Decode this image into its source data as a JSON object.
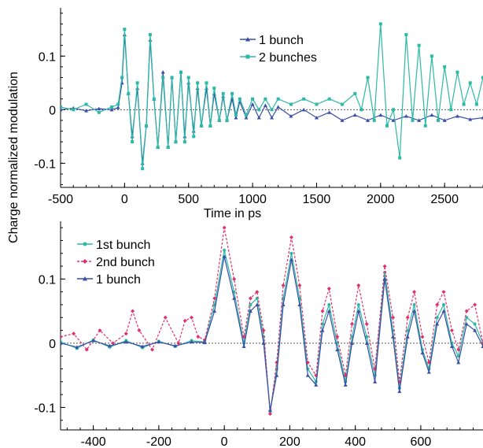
{
  "figure": {
    "shared_ylabel": "Charge normalized modulation"
  },
  "colors": {
    "one_bunch": "#3a4fa6",
    "two_bunches": "#2cb9a5",
    "first_bunch": "#2cb9a5",
    "second_bunch": "#e0306a",
    "zero_line": "#555555"
  },
  "chart_data": [
    {
      "type": "line",
      "xlabel": "Time in ps",
      "ylabel": "Charge normalized modulation",
      "xlim": [
        -500,
        2800
      ],
      "ylim": [
        -0.145,
        0.19
      ],
      "xticks": [
        -500,
        0,
        500,
        1000,
        1500,
        2000,
        2500
      ],
      "xtick_labels": [
        "-500",
        "0",
        "500",
        "1000",
        "1500",
        "2000",
        "2500"
      ],
      "yticks": [
        -0.1,
        0,
        0.1
      ],
      "ytick_labels": [
        "-0.1",
        "0",
        "0.1"
      ],
      "zero_line": true,
      "legend_position": "top-center",
      "series": [
        {
          "name": "1 bunch",
          "color": "#3a4fa6",
          "marker": "triangle",
          "x": [
            -500,
            -400,
            -300,
            -200,
            -100,
            -50,
            -20,
            0,
            30,
            60,
            100,
            140,
            170,
            200,
            230,
            260,
            300,
            340,
            370,
            400,
            440,
            470,
            500,
            540,
            570,
            600,
            640,
            670,
            700,
            740,
            770,
            800,
            840,
            870,
            900,
            950,
            1000,
            1050,
            1100,
            1150,
            1200,
            1300,
            1400,
            1500,
            1600,
            1700,
            1800,
            1900,
            2000,
            2100,
            2200,
            2300,
            2400,
            2500,
            2600,
            2700,
            2800
          ],
          "y": [
            0.0,
            0.003,
            -0.002,
            0.002,
            0.0,
            0.004,
            0.05,
            0.14,
            0.03,
            -0.05,
            0.04,
            -0.1,
            -0.03,
            0.13,
            0.02,
            -0.07,
            0.07,
            -0.07,
            0.06,
            -0.06,
            0.07,
            -0.05,
            0.05,
            -0.04,
            0.04,
            -0.03,
            0.04,
            -0.03,
            0.03,
            -0.02,
            0.025,
            -0.02,
            0.02,
            -0.015,
            0.015,
            -0.015,
            0.01,
            -0.015,
            0.008,
            -0.015,
            0.005,
            -0.012,
            0.0,
            -0.015,
            -0.005,
            -0.02,
            -0.01,
            -0.02,
            -0.01,
            -0.02,
            -0.012,
            -0.02,
            -0.01,
            -0.02,
            -0.012,
            -0.018,
            -0.015
          ]
        },
        {
          "name": "2 bunches",
          "color": "#2cb9a5",
          "marker": "square",
          "x": [
            -500,
            -400,
            -300,
            -200,
            -100,
            -50,
            -20,
            0,
            30,
            60,
            100,
            140,
            170,
            200,
            230,
            260,
            300,
            340,
            370,
            400,
            440,
            470,
            500,
            540,
            570,
            600,
            640,
            670,
            700,
            740,
            770,
            800,
            840,
            870,
            900,
            950,
            1000,
            1050,
            1100,
            1150,
            1200,
            1300,
            1400,
            1500,
            1600,
            1700,
            1800,
            1850,
            1900,
            1950,
            2000,
            2050,
            2100,
            2150,
            2200,
            2250,
            2300,
            2350,
            2400,
            2450,
            2500,
            2550,
            2600,
            2650,
            2700,
            2750,
            2800
          ],
          "y": [
            0.005,
            0.0,
            0.01,
            -0.005,
            0.005,
            0.01,
            0.06,
            0.15,
            0.03,
            -0.06,
            0.05,
            -0.11,
            -0.03,
            0.14,
            0.02,
            -0.07,
            0.06,
            -0.07,
            0.06,
            -0.06,
            0.07,
            -0.06,
            0.06,
            -0.05,
            0.05,
            -0.03,
            0.05,
            -0.03,
            0.04,
            -0.02,
            0.03,
            -0.02,
            0.03,
            -0.01,
            0.02,
            -0.01,
            0.02,
            0.0,
            0.02,
            0.0,
            0.02,
            0.01,
            0.02,
            0.01,
            0.02,
            0.01,
            0.03,
            0.0,
            0.06,
            -0.02,
            0.16,
            -0.03,
            0.0,
            -0.09,
            0.14,
            -0.02,
            0.12,
            -0.03,
            0.1,
            -0.02,
            0.08,
            0.0,
            0.07,
            0.01,
            0.05,
            0.01,
            0.06
          ]
        }
      ]
    },
    {
      "type": "line",
      "xlabel": "Time in ps",
      "ylabel": "Charge normalized modulation",
      "xlim": [
        -500,
        790
      ],
      "ylim": [
        -0.135,
        0.19
      ],
      "xticks": [
        -400,
        -200,
        0,
        200,
        400,
        600
      ],
      "xtick_labels": [
        "-400",
        "-200",
        "0",
        "200",
        "400",
        "600"
      ],
      "yticks": [
        -0.1,
        0,
        0.1
      ],
      "ytick_labels": [
        "-0.1",
        "0",
        "0.1"
      ],
      "zero_line": true,
      "legend_position": "top-left",
      "series": [
        {
          "name": "1st bunch",
          "color": "#2cb9a5",
          "marker": "circle",
          "x": [
            -500,
            -450,
            -400,
            -350,
            -300,
            -250,
            -200,
            -150,
            -100,
            -60,
            -30,
            0,
            30,
            60,
            80,
            100,
            120,
            140,
            160,
            180,
            205,
            230,
            255,
            280,
            300,
            320,
            345,
            370,
            390,
            410,
            435,
            460,
            490,
            515,
            535,
            560,
            580,
            605,
            625,
            650,
            670,
            695,
            715,
            740,
            765,
            790
          ],
          "y": [
            0.002,
            -0.008,
            0.005,
            -0.006,
            0.004,
            -0.007,
            0.003,
            -0.005,
            0.004,
            0.002,
            0.06,
            0.145,
            0.08,
            0.0,
            0.06,
            0.07,
            0.01,
            -0.105,
            -0.04,
            0.07,
            0.14,
            0.07,
            -0.04,
            -0.06,
            0.03,
            0.06,
            0.0,
            -0.06,
            0.01,
            0.06,
            0.01,
            -0.05,
            0.11,
            0.02,
            -0.07,
            0.02,
            0.06,
            -0.01,
            -0.04,
            0.04,
            0.06,
            0.0,
            -0.02,
            0.04,
            0.03,
            0.0
          ]
        },
        {
          "name": "2nd bunch",
          "color": "#e0306a",
          "marker": "diamond",
          "x": [
            -500,
            -460,
            -420,
            -380,
            -340,
            -300,
            -280,
            -260,
            -220,
            -180,
            -140,
            -120,
            -100,
            -80,
            -60,
            -30,
            0,
            30,
            60,
            80,
            100,
            120,
            140,
            160,
            180,
            205,
            230,
            255,
            280,
            300,
            320,
            345,
            370,
            390,
            410,
            435,
            460,
            490,
            515,
            535,
            560,
            580,
            605,
            625,
            650,
            670,
            695,
            715,
            740,
            765,
            790
          ],
          "y": [
            0.01,
            0.015,
            -0.01,
            0.02,
            0.0,
            0.015,
            0.05,
            0.02,
            -0.01,
            0.04,
            0.0,
            0.035,
            0.04,
            0.01,
            0.005,
            0.07,
            0.18,
            0.1,
            0.01,
            0.07,
            0.08,
            0.02,
            -0.11,
            -0.03,
            0.09,
            0.165,
            0.09,
            -0.03,
            -0.05,
            0.05,
            0.085,
            0.01,
            -0.05,
            0.03,
            0.09,
            0.03,
            -0.04,
            0.12,
            0.04,
            -0.06,
            0.04,
            0.08,
            0.01,
            -0.03,
            0.06,
            0.08,
            0.02,
            -0.01,
            0.05,
            0.06,
            0.0
          ]
        },
        {
          "name": "1 bunch",
          "color": "#3a4fa6",
          "marker": "triangle",
          "x": [
            -500,
            -450,
            -400,
            -350,
            -300,
            -250,
            -200,
            -150,
            -100,
            -60,
            -30,
            0,
            30,
            60,
            80,
            100,
            120,
            140,
            160,
            180,
            205,
            230,
            255,
            280,
            300,
            320,
            345,
            370,
            390,
            410,
            435,
            460,
            490,
            515,
            535,
            560,
            580,
            605,
            625,
            650,
            670,
            695,
            715,
            740,
            765,
            790
          ],
          "y": [
            0.0,
            -0.006,
            0.004,
            -0.004,
            0.002,
            -0.005,
            0.002,
            -0.004,
            0.002,
            0.001,
            0.05,
            0.135,
            0.07,
            -0.005,
            0.05,
            0.06,
            0.0,
            -0.105,
            -0.05,
            0.06,
            0.13,
            0.06,
            -0.05,
            -0.065,
            0.02,
            0.05,
            -0.01,
            -0.065,
            0.0,
            0.05,
            0.0,
            -0.06,
            0.1,
            0.01,
            -0.075,
            0.01,
            0.05,
            -0.015,
            -0.045,
            0.03,
            0.05,
            -0.005,
            -0.03,
            0.03,
            0.02,
            -0.005
          ]
        }
      ]
    }
  ]
}
